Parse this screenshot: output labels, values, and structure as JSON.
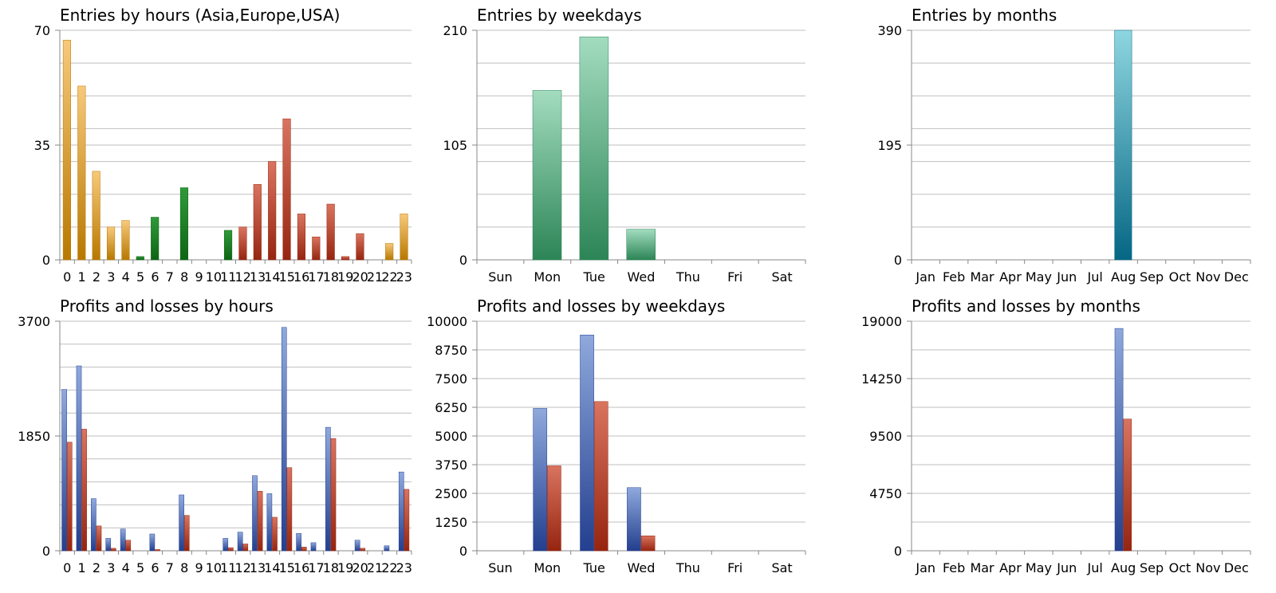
{
  "colors": {
    "gold_top": "#f7c97a",
    "gold_bottom": "#b87800",
    "green_top": "#2f9a3a",
    "green_bottom": "#0e6514",
    "red_top": "#d9745f",
    "red_bottom": "#962510",
    "seagreen_top": "#a3dcbf",
    "seagreen_bottom": "#2c8556",
    "teal_top": "#8ed6e0",
    "teal_bottom": "#056784",
    "blue_top": "#8fa9dd",
    "blue_bottom": "#233f8e",
    "grid": "#bfbfbf",
    "axis": "#888888"
  },
  "chart_data": [
    {
      "type": "bar",
      "title": "Entries by hours (Asia,Europe,USA)",
      "categories": [
        "0",
        "1",
        "2",
        "3",
        "4",
        "5",
        "6",
        "7",
        "8",
        "9",
        "10",
        "11",
        "12",
        "13",
        "14",
        "15",
        "16",
        "17",
        "18",
        "19",
        "20",
        "21",
        "22",
        "23"
      ],
      "series": [
        {
          "values": [
            67,
            53,
            27,
            10,
            12,
            1,
            13,
            0,
            22,
            0,
            0,
            9,
            10,
            23,
            30,
            43,
            14,
            7,
            17,
            1,
            8,
            0,
            5,
            14
          ]
        }
      ],
      "bar_colors": [
        "gold",
        "gold",
        "gold",
        "gold",
        "gold",
        "green",
        "green",
        "green",
        "green",
        "green",
        "green",
        "green",
        "red",
        "red",
        "red",
        "red",
        "red",
        "red",
        "red",
        "red",
        "red",
        "gold",
        "gold",
        "gold"
      ],
      "yticks": [
        0,
        35,
        70
      ],
      "ylim": [
        0,
        70
      ]
    },
    {
      "type": "bar",
      "title": "Entries by weekdays",
      "categories": [
        "Sun",
        "Mon",
        "Tue",
        "Wed",
        "Thu",
        "Fri",
        "Sat"
      ],
      "series": [
        {
          "values": [
            0,
            155,
            204,
            28,
            0,
            0,
            0
          ]
        }
      ],
      "bar_colors": [
        "seagreen"
      ],
      "yticks": [
        0,
        105,
        210
      ],
      "ylim": [
        0,
        210
      ]
    },
    {
      "type": "bar",
      "title": "Entries by months",
      "categories": [
        "Jan",
        "Feb",
        "Mar",
        "Apr",
        "May",
        "Jun",
        "Jul",
        "Aug",
        "Sep",
        "Oct",
        "Nov",
        "Dec"
      ],
      "series": [
        {
          "values": [
            0,
            0,
            0,
            0,
            0,
            0,
            0,
            390,
            0,
            0,
            0,
            0
          ]
        }
      ],
      "bar_colors": [
        "teal"
      ],
      "yticks": [
        0,
        195,
        390
      ],
      "ylim": [
        0,
        390
      ]
    },
    {
      "type": "bar",
      "title": "Profits and losses by hours",
      "categories": [
        "0",
        "1",
        "2",
        "3",
        "4",
        "5",
        "6",
        "7",
        "8",
        "9",
        "10",
        "11",
        "12",
        "13",
        "14",
        "15",
        "16",
        "17",
        "18",
        "19",
        "20",
        "21",
        "22",
        "23"
      ],
      "series": [
        {
          "color": "blue",
          "values": [
            2600,
            2980,
            840,
            200,
            350,
            0,
            270,
            0,
            900,
            0,
            0,
            200,
            300,
            1210,
            920,
            3600,
            280,
            130,
            1990,
            0,
            170,
            0,
            80,
            1270
          ]
        },
        {
          "color": "red",
          "values": [
            1750,
            1960,
            400,
            40,
            170,
            0,
            20,
            0,
            570,
            0,
            0,
            50,
            110,
            960,
            540,
            1340,
            60,
            0,
            1810,
            0,
            40,
            0,
            0,
            990
          ]
        }
      ],
      "yticks": [
        0,
        1850,
        3700
      ],
      "ylim": [
        0,
        3700
      ]
    },
    {
      "type": "bar",
      "title": "Profits and losses by weekdays",
      "categories": [
        "Sun",
        "Mon",
        "Tue",
        "Wed",
        "Thu",
        "Fri",
        "Sat"
      ],
      "series": [
        {
          "color": "blue",
          "values": [
            0,
            6200,
            9400,
            2750,
            0,
            0,
            0
          ]
        },
        {
          "color": "red",
          "values": [
            0,
            3700,
            6500,
            650,
            0,
            0,
            0
          ]
        }
      ],
      "yticks": [
        0,
        1250,
        2500,
        3750,
        5000,
        6250,
        7500,
        8750,
        10000
      ],
      "ylim": [
        0,
        10000
      ]
    },
    {
      "type": "bar",
      "title": "Profits and losses by months",
      "categories": [
        "Jan",
        "Feb",
        "Mar",
        "Apr",
        "May",
        "Jun",
        "Jul",
        "Aug",
        "Sep",
        "Oct",
        "Nov",
        "Dec"
      ],
      "series": [
        {
          "color": "blue",
          "values": [
            0,
            0,
            0,
            0,
            0,
            0,
            0,
            18400,
            0,
            0,
            0,
            0
          ]
        },
        {
          "color": "red",
          "values": [
            0,
            0,
            0,
            0,
            0,
            0,
            0,
            10900,
            0,
            0,
            0,
            0
          ]
        }
      ],
      "yticks": [
        0,
        4750,
        9500,
        14250,
        19000
      ],
      "ylim": [
        0,
        19000
      ]
    }
  ]
}
